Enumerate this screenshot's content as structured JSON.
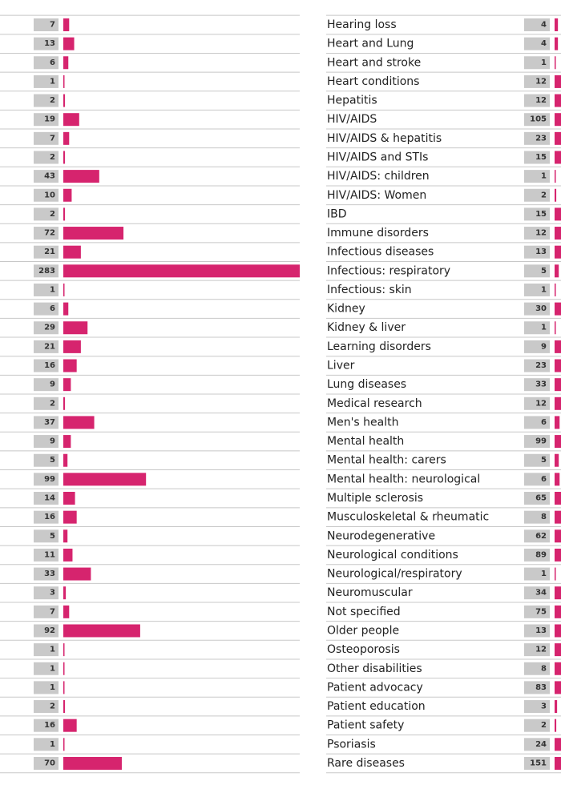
{
  "chart_data": [
    {
      "type": "bar",
      "orientation": "horizontal",
      "color": "#d6246e",
      "xlim": [
        0,
        283
      ],
      "values": [
        7,
        13,
        6,
        1,
        2,
        19,
        7,
        2,
        43,
        10,
        2,
        72,
        21,
        283,
        1,
        6,
        29,
        21,
        16,
        9,
        2,
        37,
        9,
        5,
        99,
        14,
        16,
        5,
        11,
        33,
        3,
        7,
        92,
        1,
        1,
        1,
        2,
        16,
        1,
        70
      ]
    },
    {
      "type": "bar",
      "orientation": "horizontal",
      "color": "#d6246e",
      "xlim": [
        0,
        283
      ],
      "categories": [
        "Hearing loss",
        "Heart and Lung",
        "Heart and stroke",
        "Heart conditions",
        "Hepatitis",
        "HIV/AIDS",
        "HIV/AIDS & hepatitis",
        "HIV/AIDS and STIs",
        "HIV/AIDS: children",
        "HIV/AIDS: Women",
        "IBD",
        "Immune disorders",
        "Infectious diseases",
        "Infectious: respiratory",
        "Infectious: skin",
        "Kidney",
        "Kidney & liver",
        "Learning disorders",
        "Liver",
        "Lung diseases",
        "Medical research",
        "Men's health",
        "Mental health",
        "Mental health: carers",
        "Mental health: neurological",
        "Multiple sclerosis",
        "Musculoskeletal & rheumatic",
        "Neurodegenerative",
        "Neurological conditions",
        "Neurological/respiratory",
        "Neuromuscular",
        "Not specified",
        "Older people",
        "Osteoporosis",
        "Other disabilities",
        "Patient advocacy",
        "Patient education",
        "Patient safety",
        "Psoriasis",
        "Rare diseases"
      ],
      "values": [
        4,
        4,
        1,
        12,
        12,
        105,
        23,
        15,
        1,
        2,
        15,
        12,
        13,
        5,
        1,
        30,
        1,
        9,
        23,
        33,
        12,
        6,
        99,
        5,
        6,
        65,
        8,
        62,
        89,
        1,
        34,
        75,
        13,
        12,
        8,
        83,
        3,
        2,
        24,
        151
      ]
    }
  ]
}
